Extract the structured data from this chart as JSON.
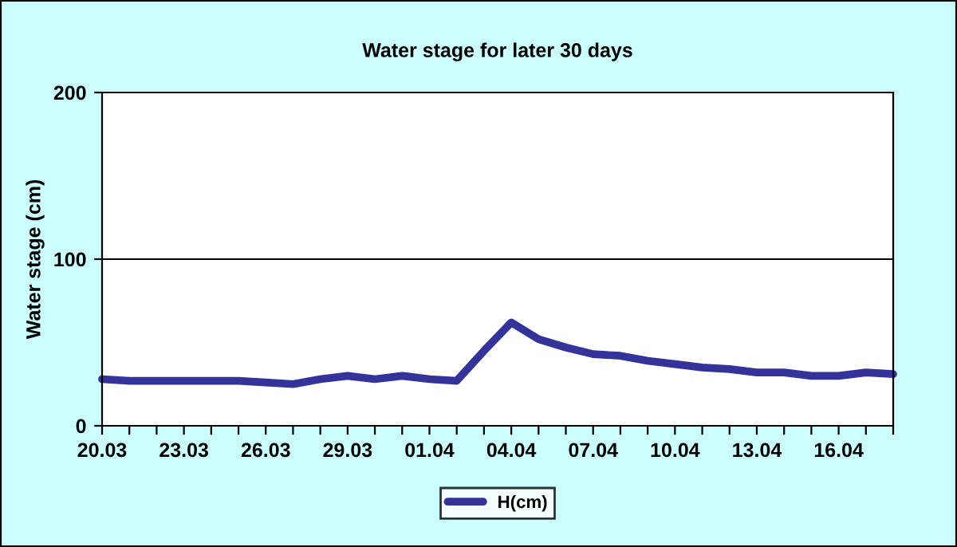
{
  "chart_data": {
    "type": "line",
    "title": "Water stage for later 30 days",
    "ylabel": "Water stage (cm)",
    "categories": [
      "20.03",
      null,
      null,
      "23.03",
      null,
      null,
      "26.03",
      null,
      null,
      "29.03",
      null,
      null,
      "01.04",
      null,
      null,
      "04.04",
      null,
      null,
      "07.04",
      null,
      null,
      "10.04",
      null,
      null,
      "13.04",
      null,
      null,
      "16.04",
      null,
      null
    ],
    "series": [
      {
        "name": "H(cm)",
        "color": "#333399",
        "values": [
          28,
          27,
          27,
          27,
          27,
          27,
          26,
          25,
          28,
          30,
          28,
          30,
          28,
          27,
          45,
          62,
          52,
          47,
          43,
          42,
          39,
          37,
          35,
          34,
          32,
          32,
          30,
          30,
          32,
          31
        ]
      }
    ],
    "ylim": [
      0,
      200
    ],
    "yticks": [
      0,
      100,
      200
    ],
    "grid": "y",
    "legend": "bottom",
    "marker": "none",
    "line_style": "solid"
  }
}
